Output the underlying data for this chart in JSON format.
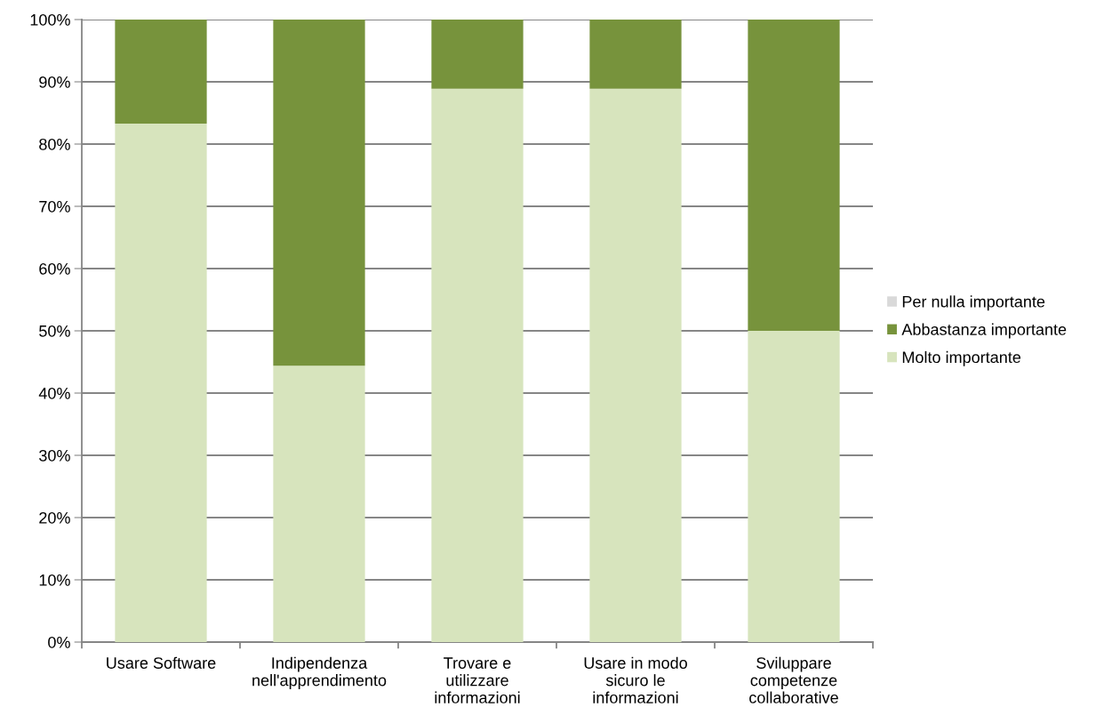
{
  "chart_data": {
    "type": "bar",
    "stacked": true,
    "categories": [
      "Usare Software",
      "Indipendenza\nnell'apprendimento",
      "Trovare e\nutilizzare\ninformazioni",
      "Usare in modo\nsicuro le\ninformazioni",
      "Sviluppare\ncompetenze\ncollaborative"
    ],
    "series": [
      {
        "name": "Molto importante",
        "color": "#d7e4bd",
        "values": [
          83.3,
          44.4,
          88.9,
          88.9,
          50.0
        ]
      },
      {
        "name": "Abbastanza importante",
        "color": "#77933c",
        "values": [
          16.7,
          55.6,
          11.1,
          11.1,
          50.0
        ]
      },
      {
        "name": "Per nulla importante",
        "color": "#d9d9d9",
        "values": [
          0,
          0,
          0,
          0,
          0
        ]
      }
    ],
    "ylim": [
      0,
      100
    ],
    "yticks": [
      {
        "value": 0,
        "label": "0%"
      },
      {
        "value": 10,
        "label": "10%"
      },
      {
        "value": 20,
        "label": "20%"
      },
      {
        "value": 30,
        "label": "30%"
      },
      {
        "value": 40,
        "label": "40%"
      },
      {
        "value": 50,
        "label": "50%"
      },
      {
        "value": 60,
        "label": "60%"
      },
      {
        "value": 70,
        "label": "70%"
      },
      {
        "value": 80,
        "label": "80%"
      },
      {
        "value": 90,
        "label": "90%"
      },
      {
        "value": 100,
        "label": "100%"
      }
    ],
    "grid": "y",
    "legend": "right"
  }
}
